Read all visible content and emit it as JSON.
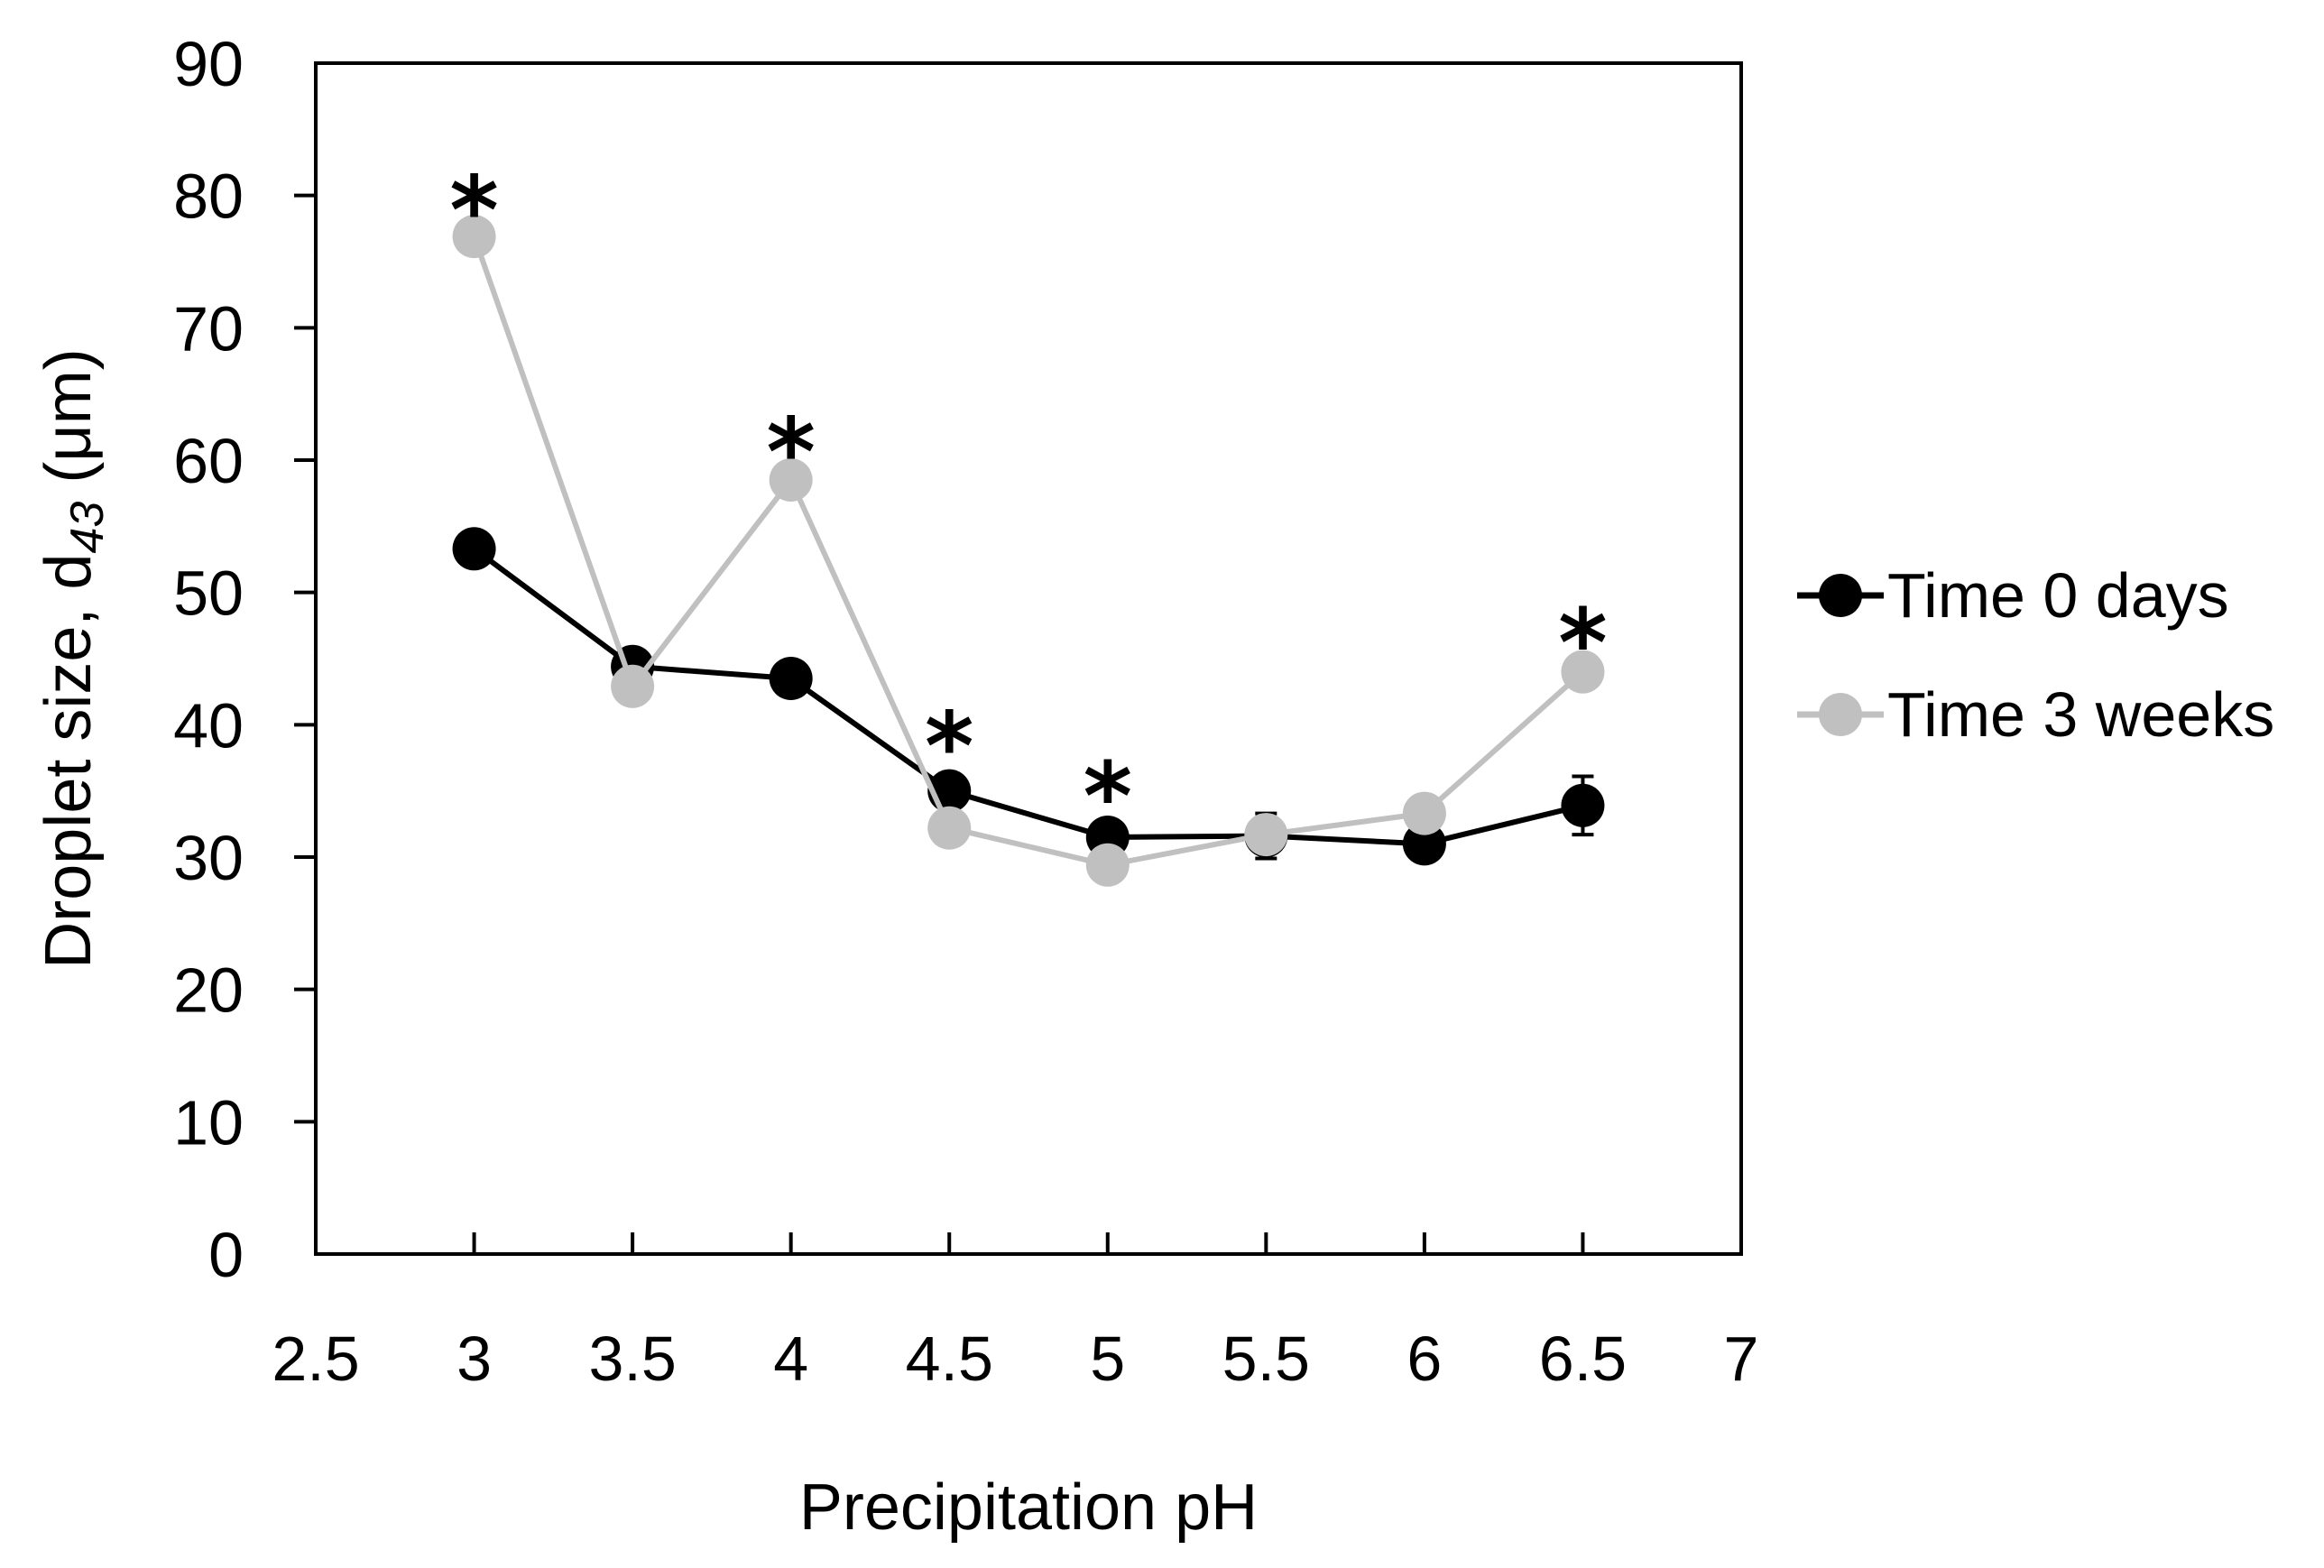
{
  "chart_data": {
    "type": "line",
    "title": "",
    "xlabel": "Precipitation pH",
    "ylabel_main": "Droplet size, d",
    "ylabel_sub": "43",
    "ylabel_tail": " (μm)",
    "xlim": [
      2.5,
      7
    ],
    "ylim": [
      0,
      90
    ],
    "xticks": [
      2.5,
      3,
      3.5,
      4,
      4.5,
      5,
      5.5,
      6,
      6.5,
      7
    ],
    "xtick_labels": [
      "2.5",
      "3",
      "3.5",
      "4",
      "4.5",
      "5",
      "5.5",
      "6",
      "6.5",
      "7"
    ],
    "yticks": [
      0,
      10,
      20,
      30,
      40,
      50,
      60,
      70,
      80,
      90
    ],
    "ytick_labels": [
      "0",
      "10",
      "20",
      "30",
      "40",
      "50",
      "60",
      "70",
      "80",
      "90"
    ],
    "grid": false,
    "legend_position": "right",
    "series": [
      {
        "name": "Time 0 days",
        "color": "#000000",
        "x": [
          3,
          3.5,
          4,
          4.5,
          5,
          5.5,
          6,
          6.5
        ],
        "y": [
          53.3,
          44.4,
          43.5,
          35.0,
          31.5,
          31.6,
          31.0,
          33.9
        ],
        "err": [
          0.5,
          0.5,
          0.5,
          1.3,
          0.5,
          1.7,
          1.2,
          2.2
        ]
      },
      {
        "name": "Time 3 weeks",
        "color": "#c0c0c0",
        "x": [
          3,
          3.5,
          4,
          4.5,
          5,
          5.5,
          6,
          6.5
        ],
        "y": [
          76.9,
          42.9,
          58.5,
          32.2,
          29.4,
          31.7,
          33.3,
          44.0
        ],
        "err": [
          0.3,
          0.3,
          0.3,
          0.3,
          0.3,
          0.3,
          0.3,
          0.3
        ]
      }
    ],
    "annotations": [
      {
        "text": "*",
        "x": 3,
        "y": 80.5
      },
      {
        "text": "*",
        "x": 4,
        "y": 62.2
      },
      {
        "text": "*",
        "x": 4.5,
        "y": 40.0
      },
      {
        "text": "*",
        "x": 5,
        "y": 36.2
      },
      {
        "text": "*",
        "x": 6.5,
        "y": 47.8
      }
    ]
  }
}
